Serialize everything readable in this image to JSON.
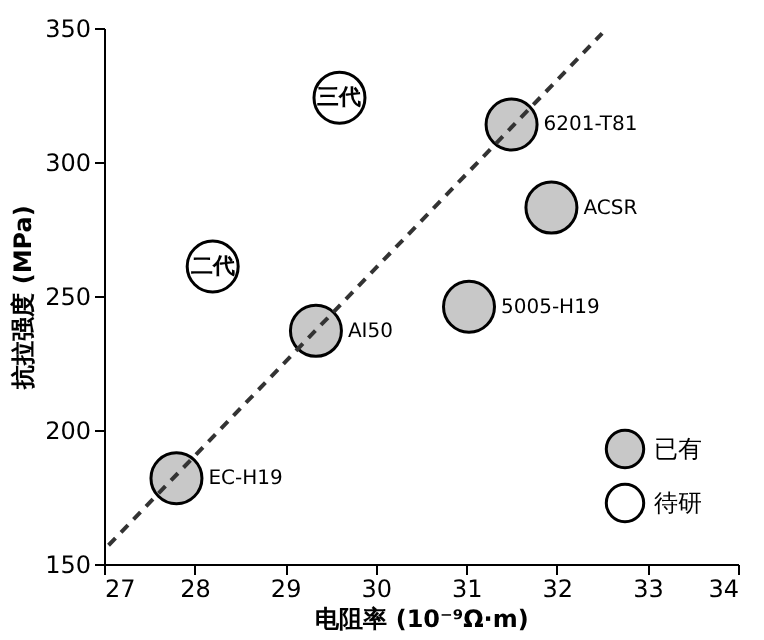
{
  "chart_data": {
    "type": "scatter",
    "xlabel": "电阻率 (10⁻⁹Ω·m)",
    "ylabel": "抗拉强度 (MPa)",
    "xlim": [
      27,
      34
    ],
    "xticks": [
      27,
      28,
      29,
      30,
      31,
      32,
      33,
      34
    ],
    "ylim": [
      150,
      350
    ],
    "yticks": [
      150,
      200,
      250,
      300,
      350
    ],
    "grid": false,
    "legend": "bottom right",
    "series": [
      {
        "name": "已有",
        "color": "#c8c8c8",
        "marker": "circle",
        "x": [
          27.8,
          29.34,
          31.03,
          31.5,
          31.94
        ],
        "values": [
          182,
          237,
          246,
          314,
          283
        ]
      },
      {
        "name": "待研",
        "color": "#ffffff",
        "marker": "circle",
        "x": [
          29.6,
          28.2
        ],
        "values": [
          324,
          261
        ]
      },
      {
        "type": "line",
        "marker": "none",
        "line_style": "dashed",
        "color": "#333333",
        "x": [
          27.05,
          32.5
        ],
        "values": [
          157,
          348
        ]
      }
    ],
    "annotations": [
      {
        "text": "EC-H19",
        "x": 27.8,
        "y": 182
      },
      {
        "text": "AI50",
        "x": 29.34,
        "y": 237
      },
      {
        "text": "5005-H19",
        "x": 31.03,
        "y": 246
      },
      {
        "text": "6201-T81",
        "x": 31.5,
        "y": 314
      },
      {
        "text": "ACSR",
        "x": 31.94,
        "y": 283
      },
      {
        "text": "三代",
        "x": 29.6,
        "y": 324
      },
      {
        "text": "二代",
        "x": 28.2,
        "y": 261
      }
    ]
  }
}
